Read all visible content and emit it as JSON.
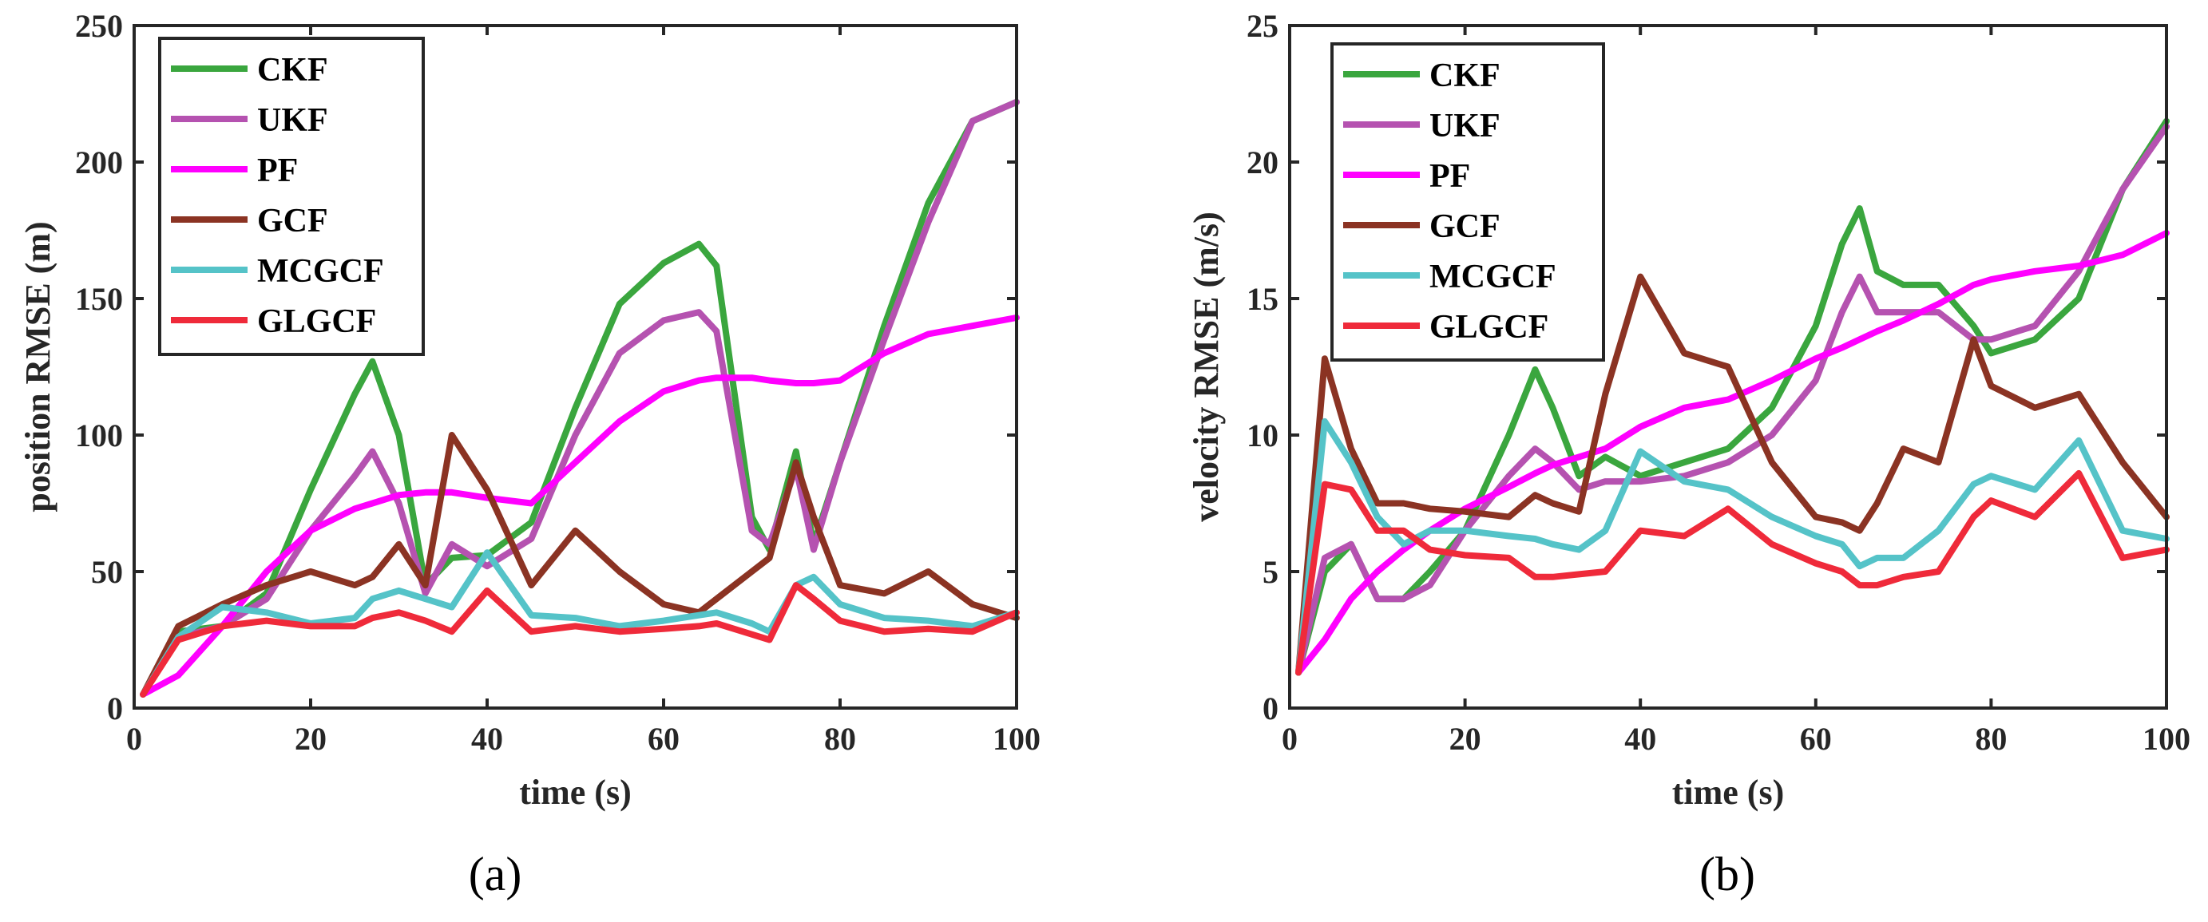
{
  "colors": {
    "CKF": "#3aa63e",
    "UKF": "#b552b0",
    "PF": "#ff00ff",
    "GCF": "#8b3323",
    "MCGCF": "#55c3c8",
    "GLGCF": "#ef2a3a"
  },
  "chart_data": [
    {
      "type": "line",
      "panel_label": "(a)",
      "title": "",
      "xlabel": "time (s)",
      "ylabel": "position RMSE (m)",
      "xlim": [
        0,
        100
      ],
      "ylim": [
        0,
        250
      ],
      "xticks": [
        0,
        20,
        40,
        60,
        80,
        100
      ],
      "yticks": [
        0,
        50,
        100,
        150,
        200,
        250
      ],
      "legend": "top-left",
      "x": [
        1,
        5,
        10,
        15,
        20,
        25,
        27,
        30,
        33,
        36,
        40,
        45,
        50,
        55,
        60,
        64,
        66,
        70,
        72,
        75,
        77,
        80,
        85,
        90,
        95,
        100
      ],
      "series": [
        {
          "name": "CKF",
          "values": [
            5,
            28,
            30,
            42,
            80,
            115,
            127,
            100,
            45,
            55,
            56,
            68,
            110,
            148,
            163,
            170,
            162,
            70,
            58,
            94,
            60,
            90,
            140,
            185,
            215,
            222
          ]
        },
        {
          "name": "UKF",
          "values": [
            5,
            26,
            30,
            40,
            65,
            85,
            94,
            75,
            42,
            60,
            52,
            62,
            100,
            130,
            142,
            145,
            138,
            65,
            60,
            88,
            58,
            90,
            135,
            178,
            215,
            222
          ]
        },
        {
          "name": "PF",
          "values": [
            5,
            12,
            30,
            50,
            65,
            73,
            75,
            78,
            79,
            79,
            77,
            75,
            90,
            105,
            116,
            120,
            121,
            121,
            120,
            119,
            119,
            120,
            130,
            137,
            140,
            143
          ]
        },
        {
          "name": "GCF",
          "values": [
            5,
            30,
            38,
            45,
            50,
            45,
            48,
            60,
            45,
            100,
            80,
            45,
            65,
            50,
            38,
            35,
            40,
            50,
            55,
            90,
            70,
            45,
            42,
            50,
            38,
            33
          ]
        },
        {
          "name": "MCGCF",
          "values": [
            5,
            26,
            37,
            35,
            31,
            33,
            40,
            43,
            40,
            37,
            57,
            34,
            33,
            30,
            32,
            34,
            35,
            31,
            28,
            45,
            48,
            38,
            33,
            32,
            30,
            35
          ]
        },
        {
          "name": "GLGCF",
          "values": [
            5,
            25,
            30,
            32,
            30,
            30,
            33,
            35,
            32,
            28,
            43,
            28,
            30,
            28,
            29,
            30,
            31,
            27,
            25,
            45,
            40,
            32,
            28,
            29,
            28,
            35
          ]
        }
      ]
    },
    {
      "type": "line",
      "panel_label": "(b)",
      "title": "",
      "xlabel": "time (s)",
      "ylabel": "velocity RMSE (m/s)",
      "xlim": [
        0,
        100
      ],
      "ylim": [
        0,
        25
      ],
      "xticks": [
        0,
        20,
        40,
        60,
        80,
        100
      ],
      "yticks": [
        0,
        5,
        10,
        15,
        20,
        25
      ],
      "legend": "top-left",
      "x": [
        1,
        4,
        7,
        10,
        13,
        16,
        20,
        25,
        28,
        30,
        33,
        36,
        40,
        45,
        50,
        55,
        60,
        63,
        65,
        67,
        70,
        74,
        78,
        80,
        85,
        90,
        95,
        100
      ],
      "series": [
        {
          "name": "CKF",
          "values": [
            1.3,
            5,
            6,
            4,
            4,
            5,
            6.5,
            10,
            12.4,
            11,
            8.5,
            9.2,
            8.5,
            9,
            9.5,
            11,
            14,
            17,
            18.3,
            16,
            15.5,
            15.5,
            14,
            13,
            13.5,
            15,
            19,
            21.5
          ]
        },
        {
          "name": "UKF",
          "values": [
            1.3,
            5.5,
            6,
            4,
            4,
            4.5,
            6.5,
            8.5,
            9.5,
            9,
            8,
            8.3,
            8.3,
            8.5,
            9,
            10,
            12,
            14.5,
            15.8,
            14.5,
            14.5,
            14.5,
            13.5,
            13.5,
            14,
            16,
            19,
            21.3
          ]
        },
        {
          "name": "PF",
          "values": [
            1.3,
            2.5,
            4,
            5,
            5.8,
            6.5,
            7.3,
            8.1,
            8.6,
            8.9,
            9.2,
            9.5,
            10.3,
            11,
            11.3,
            12,
            12.8,
            13.2,
            13.5,
            13.8,
            14.2,
            14.8,
            15.5,
            15.7,
            16,
            16.2,
            16.6,
            17.4
          ]
        },
        {
          "name": "GCF",
          "values": [
            1.3,
            12.8,
            9.5,
            7.5,
            7.5,
            7.3,
            7.2,
            7,
            7.8,
            7.5,
            7.2,
            11.5,
            15.8,
            13,
            12.5,
            9,
            7,
            6.8,
            6.5,
            7.5,
            9.5,
            9,
            13.5,
            11.8,
            11,
            11.5,
            9,
            7
          ]
        },
        {
          "name": "MCGCF",
          "values": [
            1.3,
            10.5,
            9,
            7,
            6,
            6.5,
            6.5,
            6.3,
            6.2,
            6,
            5.8,
            6.5,
            9.4,
            8.3,
            8,
            7,
            6.3,
            6,
            5.2,
            5.5,
            5.5,
            6.5,
            8.2,
            8.5,
            8,
            9.8,
            6.5,
            6.2
          ]
        },
        {
          "name": "GLGCF",
          "values": [
            1.3,
            8.2,
            8,
            6.5,
            6.5,
            5.8,
            5.6,
            5.5,
            4.8,
            4.8,
            4.9,
            5,
            6.5,
            6.3,
            7.3,
            6,
            5.3,
            5,
            4.5,
            4.5,
            4.8,
            5,
            7,
            7.6,
            7,
            8.6,
            5.5,
            5.8
          ]
        }
      ]
    }
  ]
}
